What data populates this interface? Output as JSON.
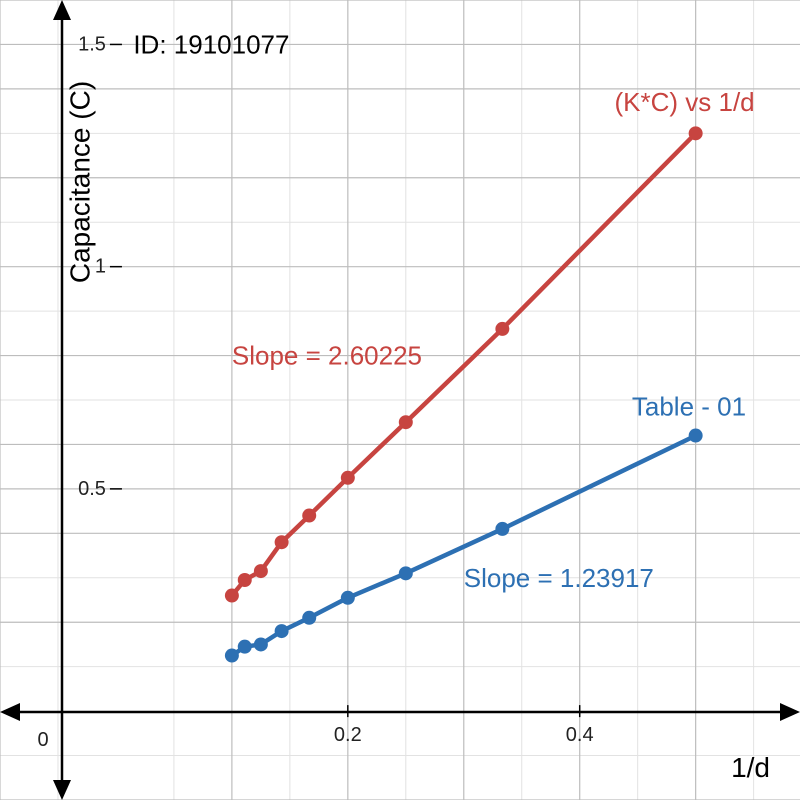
{
  "chart_data": {
    "type": "line",
    "title": "",
    "xlabel": "1/d",
    "ylabel": "Capacitance (C)",
    "xlim": [
      -0.1,
      0.59
    ],
    "ylim": [
      -0.2,
      1.6
    ],
    "x_ticks": [
      0.2,
      0.4
    ],
    "x_tick_labels": [
      "0.2",
      "0.4"
    ],
    "y_ticks": [
      0.5,
      1,
      1.5
    ],
    "y_tick_labels": [
      "0.5",
      "1",
      "1.5"
    ],
    "origin_label": "0",
    "grid": true,
    "minor_grid_step_x": 0.05,
    "minor_grid_step_y": 0.1,
    "series": [
      {
        "name": "(K*C) vs 1/d",
        "color": "#c74440",
        "x": [
          0.1,
          0.1111,
          0.125,
          0.1429,
          0.1667,
          0.2,
          0.25,
          0.3333,
          0.5
        ],
        "y": [
          0.26,
          0.295,
          0.315,
          0.38,
          0.44,
          0.525,
          0.65,
          0.86,
          1.3
        ]
      },
      {
        "name": "Table - 01",
        "color": "#2d70b3",
        "x": [
          0.1,
          0.1111,
          0.125,
          0.1429,
          0.1667,
          0.2,
          0.25,
          0.3333,
          0.5
        ],
        "y": [
          0.125,
          0.145,
          0.15,
          0.18,
          0.21,
          0.255,
          0.31,
          0.41,
          0.62
        ]
      }
    ],
    "annotations": [
      {
        "text": "ID: 19101077",
        "x": 0.015,
        "y": 1.5,
        "color": "#000000"
      },
      {
        "text": "(K*C) vs 1/d",
        "x": 0.43,
        "y": 1.37,
        "color": "#c74440"
      },
      {
        "text": "Slope = 2.60225",
        "x": 0.1,
        "y": 0.8,
        "color": "#c74440"
      },
      {
        "text": "Table - 01",
        "x": 0.445,
        "y": 0.685,
        "color": "#2d70b3"
      },
      {
        "text": "Slope = 1.23917",
        "x": 0.3,
        "y": 0.3,
        "color": "#2d70b3"
      }
    ]
  }
}
